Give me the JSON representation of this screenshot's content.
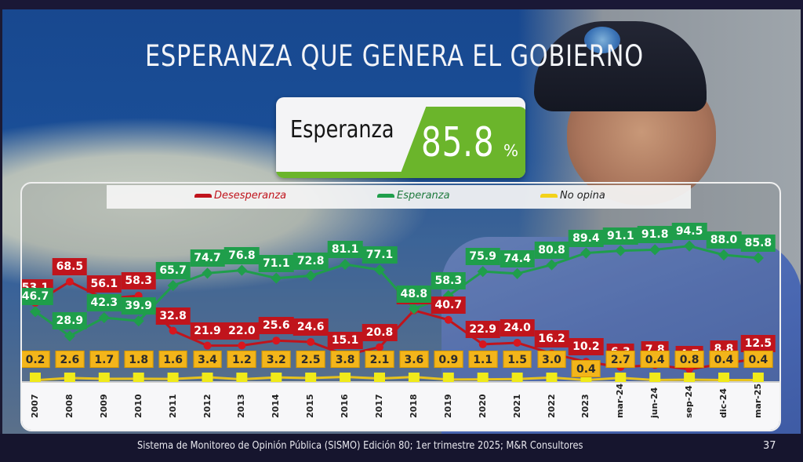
{
  "slide": {
    "title": "ESPERANZA QUE GENERA EL GOBIERNO",
    "kpi": {
      "label": "Esperanza",
      "value": "85.8",
      "unit": "%"
    },
    "footer": {
      "source": "Sistema de Monitoreo de Opinión Pública (SISMO) Edición 80; 1er trimestre 2025; M&R Consultores",
      "page": "37"
    },
    "colors": {
      "desesperanza": "#c0141c",
      "esperanza": "#1f9e4b",
      "no_opina": "#f3b51a",
      "kpi_green": "#6bb52b"
    }
  },
  "legend": [
    {
      "key": "desesperanza",
      "label": "Desesperanza"
    },
    {
      "key": "esperanza",
      "label": "Esperanza"
    },
    {
      "key": "no_opina",
      "label": "No opina"
    }
  ],
  "chart_data": {
    "type": "line",
    "title": "ESPERANZA QUE GENERA EL GOBIERNO",
    "xlabel": "",
    "ylabel": "%",
    "ylim": [
      0,
      100
    ],
    "grid": false,
    "legend_position": "top",
    "categories": [
      "2007",
      "2008",
      "2009",
      "2010",
      "2011",
      "2012",
      "2013",
      "2014",
      "2015",
      "2016",
      "2017",
      "2018",
      "2019",
      "2020",
      "2021",
      "2022",
      "2023",
      "mar-24",
      "jun-24",
      "sep-24",
      "dic-24",
      "mar-25"
    ],
    "series": [
      {
        "name": "Desesperanza",
        "key": "desesperanza",
        "values": [
          53.1,
          68.5,
          56.1,
          58.3,
          32.8,
          21.9,
          22.0,
          25.6,
          24.6,
          15.1,
          20.8,
          47.6,
          40.7,
          22.9,
          24.0,
          16.2,
          10.2,
          6.3,
          7.8,
          4.7,
          8.8,
          12.5
        ]
      },
      {
        "name": "Esperanza",
        "key": "esperanza",
        "values": [
          46.7,
          28.9,
          42.3,
          39.9,
          65.7,
          74.7,
          76.8,
          71.1,
          72.8,
          81.1,
          77.1,
          48.8,
          58.3,
          75.9,
          74.4,
          80.8,
          89.4,
          91.1,
          91.8,
          94.5,
          88.0,
          85.8
        ]
      },
      {
        "name": "No opina",
        "key": "no_opina",
        "values": [
          0.2,
          2.6,
          1.7,
          1.8,
          1.6,
          3.4,
          1.2,
          3.2,
          2.5,
          3.8,
          2.1,
          3.6,
          0.9,
          1.1,
          1.5,
          3.0,
          0.4,
          2.7,
          0.4,
          0.8,
          0.4,
          0.4
        ]
      }
    ],
    "annotations": [
      "Esperanza 85.8%"
    ]
  }
}
